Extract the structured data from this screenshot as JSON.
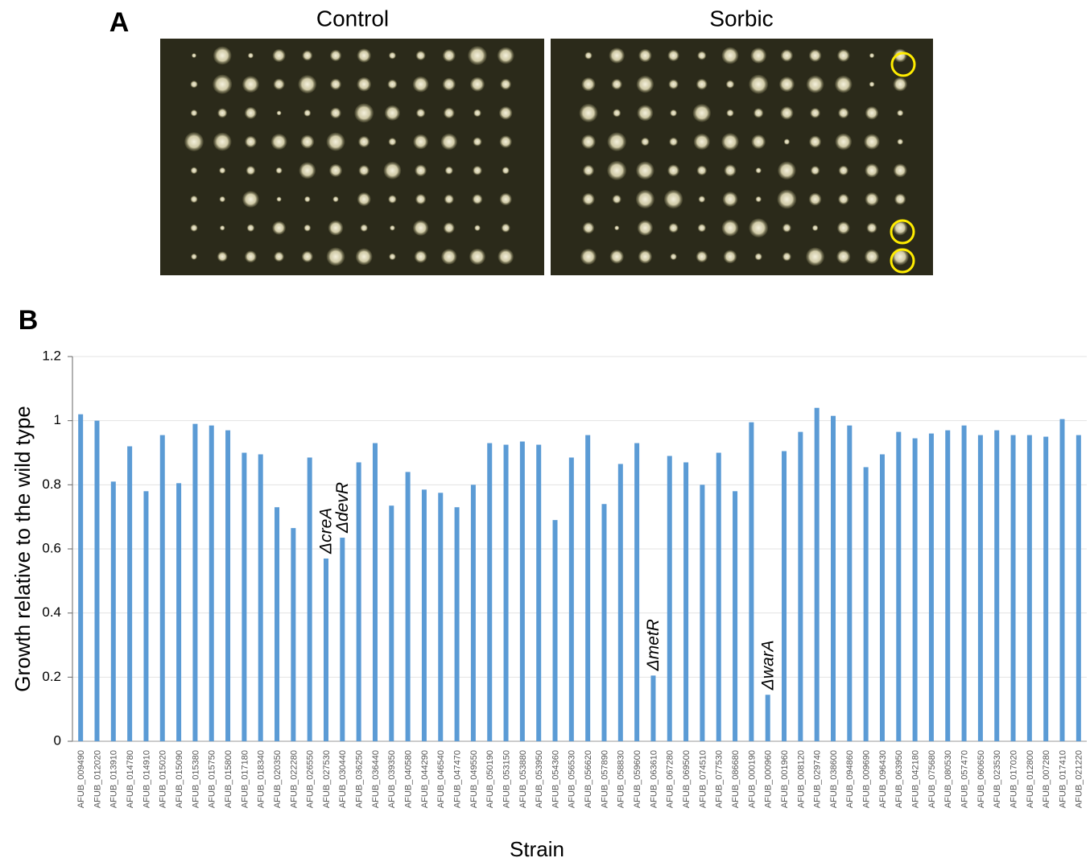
{
  "panel_a": {
    "label": "A",
    "plates": [
      {
        "title": "Control"
      },
      {
        "title": "Sorbic"
      }
    ]
  },
  "chart_data": {
    "type": "bar",
    "panel_label": "B",
    "x_label": "Strain",
    "y_label": "Growth relative to the wild type",
    "color": "#5b9bd5",
    "ylim": [
      0,
      1.2
    ],
    "yticks": [
      0,
      0.2,
      0.4,
      0.6,
      0.8,
      1,
      1.2
    ],
    "grid": true,
    "categories": [
      "AFUB_009490",
      "AFUB_012020",
      "AFUB_013910",
      "AFUB_014780",
      "AFUB_014910",
      "AFUB_015020",
      "AFUB_015090",
      "AFUB_015380",
      "AFUB_015750",
      "AFUB_015800",
      "AFUB_017180",
      "AFUB_018340",
      "AFUB_020350",
      "AFUB_022280",
      "AFUB_026550",
      "AFUB_027530",
      "AFUB_030440",
      "AFUB_036250",
      "AFUB_036440",
      "AFUB_039350",
      "AFUB_040580",
      "AFUB_044290",
      "AFUB_046540",
      "AFUB_047470",
      "AFUB_049550",
      "AFUB_050190",
      "AFUB_053150",
      "AFUB_053880",
      "AFUB_053950",
      "AFUB_054360",
      "AFUB_056530",
      "AFUB_056620",
      "AFUB_057890",
      "AFUB_058830",
      "AFUB_059600",
      "AFUB_063610",
      "AFUB_067280",
      "AFUB_069500",
      "AFUB_074510",
      "AFUB_077530",
      "AFUB_086680",
      "AFUB_000190",
      "AFUB_000960",
      "AFUB_001960",
      "AFUB_008120",
      "AFUB_029740",
      "AFUB_038600",
      "AFUB_094860",
      "AFUB_009690",
      "AFUB_096430",
      "AFUB_063950",
      "AFUB_042180",
      "AFUB_075680",
      "AFUB_080530",
      "AFUB_057470",
      "AFUB_060650",
      "AFUB_023530",
      "AFUB_017020",
      "AFUB_012800",
      "AFUB_007280",
      "AFUB_017410",
      "AFUB_021220"
    ],
    "values": [
      1.02,
      1.0,
      0.81,
      0.92,
      0.78,
      0.955,
      0.805,
      0.99,
      0.985,
      0.97,
      0.9,
      0.895,
      0.73,
      0.665,
      0.885,
      0.57,
      0.635,
      0.87,
      0.93,
      0.735,
      0.84,
      0.785,
      0.775,
      0.73,
      0.8,
      0.93,
      0.925,
      0.935,
      0.925,
      0.69,
      0.885,
      0.955,
      0.74,
      0.865,
      0.93,
      0.205,
      0.89,
      0.87,
      0.8,
      0.9,
      0.78,
      0.995,
      0.145,
      0.905,
      0.965,
      1.04,
      1.015,
      0.985,
      0.855,
      0.895,
      0.965,
      0.945,
      0.96,
      0.97,
      0.985,
      0.955,
      0.97,
      0.955,
      0.955,
      0.95,
      1.005,
      0.955
    ],
    "annotations": [
      {
        "text": "ΔcreA",
        "category": "AFUB_027530"
      },
      {
        "text": "ΔdevR",
        "category": "AFUB_030440"
      },
      {
        "text": "ΔmetR",
        "category": "AFUB_063610"
      },
      {
        "text": "ΔwarA",
        "category": "AFUB_000960"
      }
    ]
  }
}
